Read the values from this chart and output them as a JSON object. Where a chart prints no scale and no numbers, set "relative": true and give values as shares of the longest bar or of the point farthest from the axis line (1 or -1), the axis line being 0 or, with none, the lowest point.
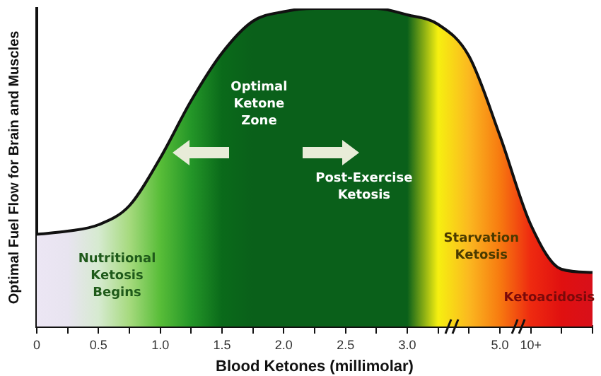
{
  "chart_data": {
    "type": "area",
    "relative": true,
    "xlabel": "Blood Ketones (millimolar)",
    "ylabel": "Optimal Fuel Flow for Brain and Muscles",
    "categories": [
      "0",
      null,
      "0.5",
      null,
      "1.0",
      null,
      "1.5",
      null,
      "2.0",
      null,
      "2.5",
      null,
      "3.0",
      null,
      null,
      "5.0",
      "10+",
      null,
      null
    ],
    "series": [
      {
        "color": "#111111",
        "colors": [
          "#ece6f4",
          "#e8e4f0",
          "#d6ead0",
          "#a6da7e",
          "#58bd38",
          "#249628",
          "#0a6a1a",
          "#0a601a",
          "#0a601a",
          "#0a601a",
          "#0a601a",
          "#0a601a",
          "#0a601a",
          "#f6f010",
          "#fbb820",
          "#f77a10",
          "#ee2a10",
          "#e01010",
          "#d8101a"
        ],
        "values": [
          0.29,
          0.3,
          0.32,
          0.38,
          0.53,
          0.71,
          0.86,
          0.96,
          0.99,
          1.0,
          1.0,
          1.0,
          0.98,
          0.95,
          0.85,
          0.6,
          0.32,
          0.18,
          0.17
        ]
      }
    ],
    "annotations": [
      "Nutritional\nKetosis\nBegins",
      "Optimal\nKetone\nZone",
      "Post-Exercise\nKetosis",
      "Starvation\nKetosis",
      "Ketoacidosis"
    ]
  }
}
